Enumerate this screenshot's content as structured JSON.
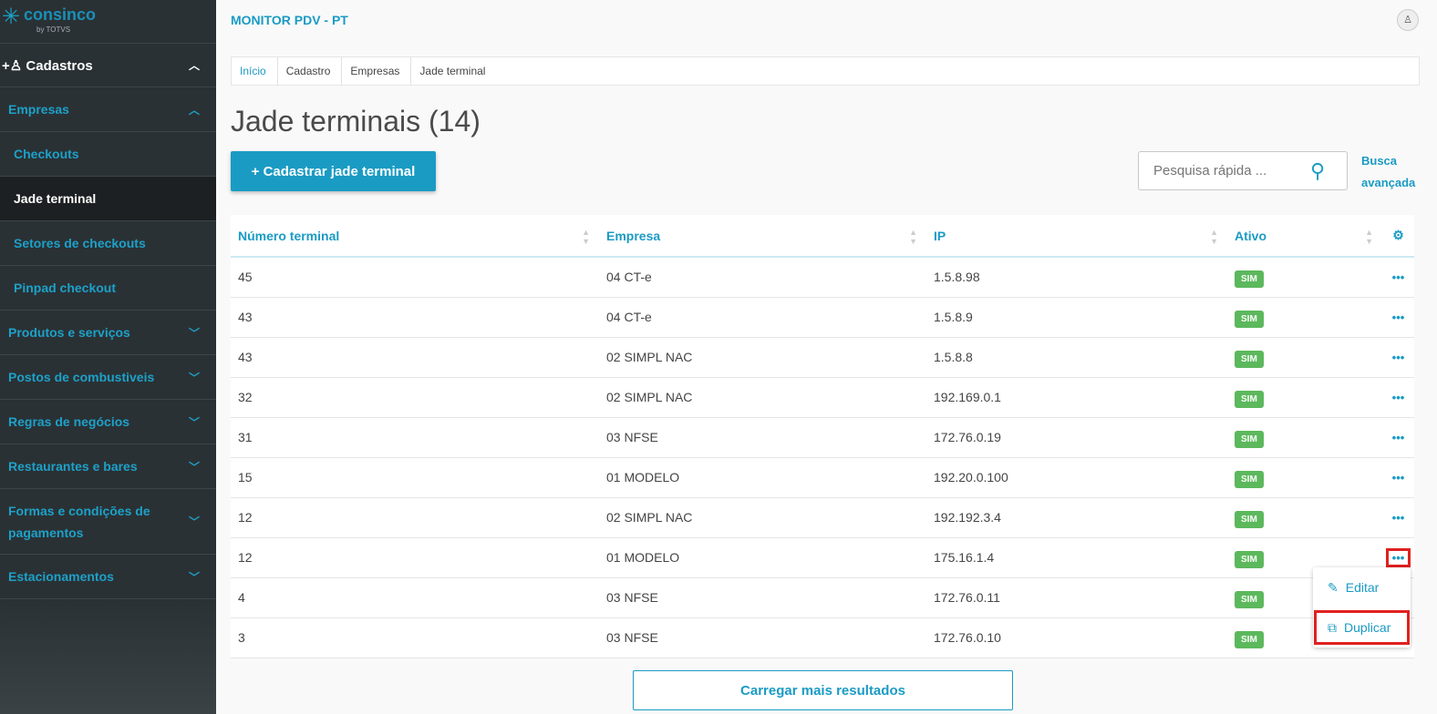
{
  "sidebar": {
    "logo": "consinco",
    "logo_by": "by TOTVS",
    "section": "Cadastros",
    "items": [
      {
        "label": "Empresas",
        "type": "group",
        "expanded": true
      },
      {
        "label": "Checkouts",
        "type": "sub"
      },
      {
        "label": "Jade terminal",
        "type": "sub",
        "active": true
      },
      {
        "label": "Setores de checkouts",
        "type": "sub"
      },
      {
        "label": "Pinpad checkout",
        "type": "sub"
      },
      {
        "label": "Produtos e serviços",
        "type": "group"
      },
      {
        "label": "Postos de combustiveis",
        "type": "group"
      },
      {
        "label": "Regras de negócios",
        "type": "group"
      },
      {
        "label": "Restaurantes e bares",
        "type": "group"
      },
      {
        "label": "Formas e condições de pagamentos",
        "type": "group"
      },
      {
        "label": "Estacionamentos",
        "type": "group"
      }
    ]
  },
  "header": {
    "title": "MONITOR PDV - PT",
    "avatar_icon": "user-icon"
  },
  "breadcrumb": [
    "Início",
    "Cadastro",
    "Empresas",
    "Jade terminal"
  ],
  "page": {
    "title": "Jade terminais (14)",
    "add_label": "+  Cadastrar jade terminal",
    "search_placeholder": "Pesquisa rápida ...",
    "advanced_search": "Busca avançada",
    "load_more": "Carregar mais resultados"
  },
  "table": {
    "columns": [
      "Número terminal",
      "Empresa",
      "IP",
      "Ativo"
    ],
    "rows": [
      [
        "45",
        "04 CT-e",
        "1.5.8.98",
        "SIM"
      ],
      [
        "43",
        "04 CT-e",
        "1.5.8.9",
        "SIM"
      ],
      [
        "43",
        "02 SIMPL NAC",
        "1.5.8.8",
        "SIM"
      ],
      [
        "32",
        "02 SIMPL NAC",
        "192.169.0.1",
        "SIM"
      ],
      [
        "31",
        "03 NFSE",
        "172.76.0.19",
        "SIM"
      ],
      [
        "15",
        "01 MODELO",
        "192.20.0.100",
        "SIM"
      ],
      [
        "12",
        "02 SIMPL NAC",
        "192.192.3.4",
        "SIM"
      ],
      [
        "12",
        "01 MODELO",
        "175.16.1.4",
        "SIM"
      ],
      [
        "4",
        "03 NFSE",
        "172.76.0.11",
        "SIM"
      ],
      [
        "3",
        "03 NFSE",
        "172.76.0.10",
        "SIM"
      ]
    ]
  },
  "row_menu": {
    "edit": "Editar",
    "duplicate": "Duplicar"
  },
  "colors": {
    "accent": "#1a9bc4",
    "badge": "#5cb85c",
    "highlight": "#e02020"
  }
}
